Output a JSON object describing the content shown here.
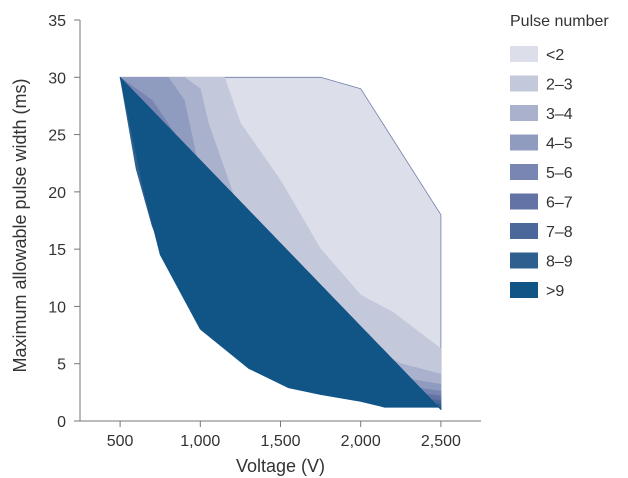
{
  "chart_data": {
    "type": "area",
    "title": "",
    "xlabel": "Voltage (V)",
    "ylabel": "Maximum allowable pulse width (ms)",
    "xlim": [
      250,
      2750
    ],
    "ylim": [
      0,
      35
    ],
    "x_ticks": [
      500,
      1000,
      1500,
      2000,
      2500
    ],
    "x_tick_labels": [
      "500",
      "1,000",
      "1,500",
      "2,000",
      "2,500"
    ],
    "y_ticks": [
      0,
      5,
      10,
      15,
      20,
      25,
      30,
      35
    ],
    "y_tick_labels": [
      "0",
      "5",
      "10",
      "15",
      "20",
      "25",
      "30",
      "35"
    ],
    "grid": false,
    "legend_title": "Pulse number",
    "legend_position": "right",
    "series": [
      {
        "name": "<2",
        "color": "#dcdeea",
        "boundary": [
          [
            500,
            30
          ],
          [
            1750,
            30
          ],
          [
            2000,
            29
          ],
          [
            2500,
            18
          ],
          [
            2500,
            1
          ]
        ]
      },
      {
        "name": "2–3",
        "color": "#c3c8db",
        "boundary": [
          [
            500,
            30
          ],
          [
            1150,
            30
          ],
          [
            1250,
            26
          ],
          [
            1500,
            21
          ],
          [
            1750,
            15
          ],
          [
            2000,
            11
          ],
          [
            2200,
            9.5
          ],
          [
            2500,
            6.3
          ],
          [
            2500,
            1
          ]
        ]
      },
      {
        "name": "3–4",
        "color": "#a9b1cc",
        "boundary": [
          [
            500,
            30
          ],
          [
            900,
            30
          ],
          [
            1000,
            29
          ],
          [
            1050,
            26
          ],
          [
            1150,
            22
          ],
          [
            1250,
            18
          ],
          [
            1500,
            12
          ],
          [
            1750,
            8.5
          ],
          [
            2000,
            7
          ],
          [
            2250,
            5
          ],
          [
            2500,
            4.1
          ],
          [
            2500,
            1
          ]
        ]
      },
      {
        "name": "4–5",
        "color": "#909cbf",
        "boundary": [
          [
            500,
            30
          ],
          [
            700,
            30
          ],
          [
            800,
            30
          ],
          [
            900,
            28
          ],
          [
            1000,
            21.5
          ],
          [
            1100,
            18
          ],
          [
            1250,
            14
          ],
          [
            1500,
            9.5
          ],
          [
            1750,
            6.2
          ],
          [
            2000,
            5
          ],
          [
            2250,
            3.8
          ],
          [
            2500,
            3.2
          ],
          [
            2500,
            1
          ]
        ]
      },
      {
        "name": "5–6",
        "color": "#7986b3",
        "boundary": [
          [
            500,
            30
          ],
          [
            700,
            28
          ],
          [
            820,
            25.5
          ],
          [
            900,
            24
          ],
          [
            1000,
            16
          ],
          [
            1100,
            13
          ],
          [
            1250,
            10.5
          ],
          [
            1500,
            7
          ],
          [
            1750,
            5
          ],
          [
            2000,
            3.8
          ],
          [
            2250,
            3.1
          ],
          [
            2500,
            2.6
          ],
          [
            2500,
            1
          ]
        ]
      },
      {
        "name": "6–7",
        "color": "#6473a6",
        "boundary": [
          [
            500,
            30
          ],
          [
            650,
            26
          ],
          [
            750,
            23.5
          ],
          [
            850,
            18.5
          ],
          [
            1000,
            13
          ],
          [
            1100,
            11
          ],
          [
            1250,
            8.5
          ],
          [
            1500,
            5.8
          ],
          [
            1750,
            4.2
          ],
          [
            2000,
            3.2
          ],
          [
            2250,
            2.6
          ],
          [
            2500,
            2.2
          ],
          [
            2500,
            1
          ]
        ]
      },
      {
        "name": "7–8",
        "color": "#4c6799",
        "boundary": [
          [
            500,
            30
          ],
          [
            600,
            25
          ],
          [
            720,
            20.5
          ],
          [
            820,
            17
          ],
          [
            1000,
            11
          ],
          [
            1100,
            9.8
          ],
          [
            1250,
            7.2
          ],
          [
            1500,
            5
          ],
          [
            1750,
            3.6
          ],
          [
            2000,
            2.8
          ],
          [
            2250,
            2.2
          ],
          [
            2500,
            1.8
          ],
          [
            2500,
            1
          ]
        ]
      },
      {
        "name": "8–9",
        "color": "#2e5f8e",
        "boundary": [
          [
            500,
            30
          ],
          [
            600,
            22
          ],
          [
            700,
            17
          ],
          [
            800,
            13.5
          ],
          [
            1000,
            9
          ],
          [
            1100,
            8.6
          ],
          [
            1250,
            6
          ],
          [
            1500,
            4
          ],
          [
            1750,
            3
          ],
          [
            2000,
            2.2
          ],
          [
            2250,
            1.6
          ],
          [
            2500,
            1.5
          ],
          [
            2500,
            1
          ]
        ]
      },
      {
        "name": ">9",
        "color": "#115486",
        "boundary": [
          [
            500,
            30
          ],
          [
            650,
            20
          ],
          [
            750,
            14.5
          ],
          [
            1000,
            8
          ],
          [
            1300,
            4.6
          ],
          [
            1550,
            2.9
          ],
          [
            1750,
            2.3
          ],
          [
            2000,
            1.7
          ],
          [
            2150,
            1.2
          ],
          [
            2500,
            1.2
          ],
          [
            2500,
            1
          ]
        ]
      }
    ]
  }
}
